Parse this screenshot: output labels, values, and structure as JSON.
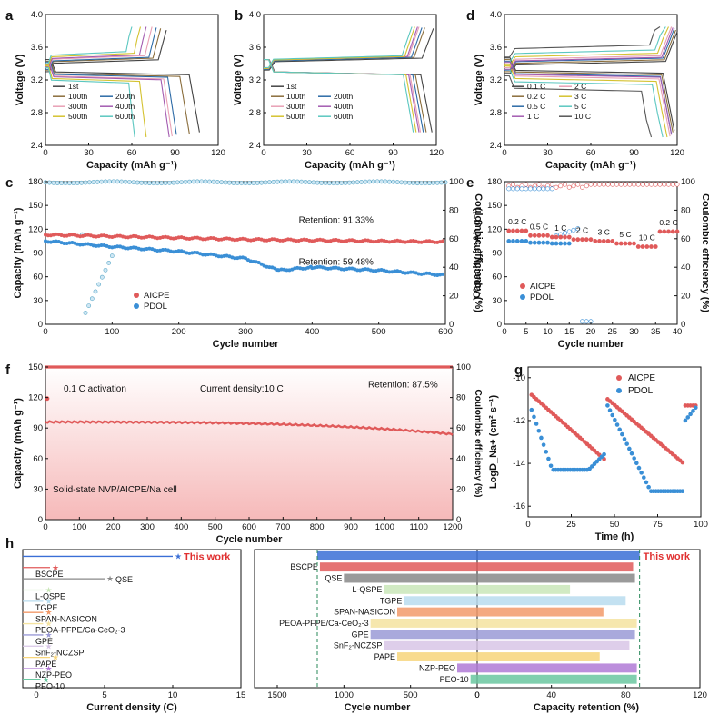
{
  "chart_data": [
    {
      "panel": "a",
      "type": "line",
      "xlabel": "Capacity (mAh g⁻¹)",
      "ylabel": "Voltage (V)",
      "xlim": [
        0,
        120
      ],
      "ylim": [
        2.4,
        4.0
      ],
      "xticks": [
        "0",
        "30",
        "60",
        "90",
        "120"
      ],
      "yticks": [
        "2.4",
        "2.8",
        "3.2",
        "3.6",
        "4.0"
      ],
      "legend": [
        "1st",
        "100th",
        "200th",
        "300th",
        "400th",
        "500th",
        "600th"
      ],
      "series": [
        {
          "name": "1st",
          "color": "#444444",
          "charge_end": 84,
          "discharge_end": 107,
          "vc": 3.4,
          "vd": 3.3
        },
        {
          "name": "100th",
          "color": "#8a6d3b",
          "charge_end": 80,
          "discharge_end": 100,
          "vc": 3.42,
          "vd": 3.28
        },
        {
          "name": "200th",
          "color": "#2c6aa6",
          "charge_end": 77,
          "discharge_end": 91,
          "vc": 3.43,
          "vd": 3.27
        },
        {
          "name": "300th",
          "color": "#e8a0b4",
          "charge_end": 74,
          "discharge_end": 88,
          "vc": 3.45,
          "vd": 3.25
        },
        {
          "name": "400th",
          "color": "#a35bb0",
          "charge_end": 70,
          "discharge_end": 86,
          "vc": 3.46,
          "vd": 3.24
        },
        {
          "name": "500th",
          "color": "#d4c230",
          "charge_end": 66,
          "discharge_end": 70,
          "vc": 3.48,
          "vd": 3.22
        },
        {
          "name": "600th",
          "color": "#5bc7c0",
          "charge_end": 60,
          "discharge_end": 62,
          "vc": 3.5,
          "vd": 3.2
        }
      ]
    },
    {
      "panel": "b",
      "type": "line",
      "xlabel": "Capacity (mAh g⁻¹)",
      "ylabel": "Voltage (V)",
      "xlim": [
        0,
        120
      ],
      "ylim": [
        2.4,
        4.0
      ],
      "xticks": [
        "0",
        "30",
        "60",
        "90",
        "120"
      ],
      "yticks": [
        "2.4",
        "2.8",
        "3.2",
        "3.6",
        "4.0"
      ],
      "legend": [
        "1st",
        "100th",
        "200th",
        "300th",
        "400th",
        "500th",
        "600th"
      ],
      "series": [
        {
          "name": "1st",
          "color": "#444444",
          "charge_end": 118,
          "discharge_end": 117,
          "vc": 3.42,
          "vd": 3.3
        },
        {
          "name": "100th",
          "color": "#8a6d3b",
          "charge_end": 112,
          "discharge_end": 113,
          "vc": 3.43,
          "vd": 3.3
        },
        {
          "name": "200th",
          "color": "#2c6aa6",
          "charge_end": 110,
          "discharge_end": 111,
          "vc": 3.43,
          "vd": 3.3
        },
        {
          "name": "300th",
          "color": "#e8a0b4",
          "charge_end": 108,
          "discharge_end": 109,
          "vc": 3.44,
          "vd": 3.3
        },
        {
          "name": "400th",
          "color": "#a35bb0",
          "charge_end": 107,
          "discharge_end": 108,
          "vc": 3.44,
          "vd": 3.3
        },
        {
          "name": "500th",
          "color": "#d4c230",
          "charge_end": 105,
          "discharge_end": 106,
          "vc": 3.44,
          "vd": 3.3
        },
        {
          "name": "600th",
          "color": "#5bc7c0",
          "charge_end": 103,
          "discharge_end": 104,
          "vc": 3.45,
          "vd": 3.3
        }
      ]
    },
    {
      "panel": "d",
      "type": "line",
      "xlabel": "Capacity (mAh g⁻¹)",
      "ylabel": "Voltage (V)",
      "xlim": [
        0,
        120
      ],
      "ylim": [
        2.4,
        4.0
      ],
      "xticks": [
        "0",
        "30",
        "60",
        "90",
        "120"
      ],
      "yticks": [
        "2.4",
        "2.8",
        "3.2",
        "3.6",
        "4.0"
      ],
      "legend": [
        "0.1 C",
        "2 C",
        "0.2 C",
        "3 C",
        "0.5 C",
        "5 C",
        "1 C",
        "10 C"
      ],
      "series": [
        {
          "name": "0.1 C",
          "color": "#444444",
          "charge_end": 120,
          "discharge_end": 118,
          "vc": 3.38,
          "vd": 3.32
        },
        {
          "name": "2 C",
          "color": "#e8a0b4",
          "charge_end": 116,
          "discharge_end": 115,
          "vc": 3.45,
          "vd": 3.25
        },
        {
          "name": "0.2 C",
          "color": "#8a6d3b",
          "charge_end": 119,
          "discharge_end": 117,
          "vc": 3.4,
          "vd": 3.3
        },
        {
          "name": "3 C",
          "color": "#d4c230",
          "charge_end": 114,
          "discharge_end": 113,
          "vc": 3.48,
          "vd": 3.22
        },
        {
          "name": "0.5 C",
          "color": "#2c6aa6",
          "charge_end": 118,
          "discharge_end": 116,
          "vc": 3.42,
          "vd": 3.28
        },
        {
          "name": "5 C",
          "color": "#5bc7c0",
          "charge_end": 112,
          "discharge_end": 110,
          "vc": 3.52,
          "vd": 3.18
        },
        {
          "name": "1 C",
          "color": "#a35bb0",
          "charge_end": 117,
          "discharge_end": 116,
          "vc": 3.43,
          "vd": 3.27
        },
        {
          "name": "10 C",
          "color": "#555555",
          "charge_end": 108,
          "discharge_end": 102,
          "vc": 3.58,
          "vd": 3.1
        }
      ]
    },
    {
      "panel": "c",
      "type": "scatter",
      "xlabel": "Cycle number",
      "ylabel": "Capacity (mAh g⁻¹)",
      "y2label": "Coulombic efficiency (%)",
      "xlim": [
        0,
        600
      ],
      "ylim": [
        0,
        180
      ],
      "y2lim": [
        0,
        100
      ],
      "xticks": [
        "0",
        "100",
        "200",
        "300",
        "400",
        "500",
        "600"
      ],
      "yticks": [
        "0",
        "30",
        "60",
        "90",
        "120",
        "150",
        "180"
      ],
      "y2ticks": [
        "0",
        "20",
        "40",
        "60",
        "80",
        "100"
      ],
      "legend": [
        "AICPE",
        "PDOL"
      ],
      "annotations": [
        "Retention: 91.33%",
        "Retention: 59.48%"
      ],
      "series": [
        {
          "name": "AICPE",
          "color": "#e05a5a",
          "capacity": [
            [
              0,
              113
            ],
            [
              100,
              111
            ],
            [
              200,
              109
            ],
            [
              300,
              107
            ],
            [
              400,
              106
            ],
            [
              500,
              105
            ],
            [
              600,
              104
            ]
          ],
          "ce": 100
        },
        {
          "name": "PDOL",
          "color": "#3a8fd6",
          "capacity": [
            [
              0,
              105
            ],
            [
              100,
              98
            ],
            [
              200,
              92
            ],
            [
              300,
              83
            ],
            [
              350,
              68
            ],
            [
              400,
              72
            ],
            [
              500,
              68
            ],
            [
              600,
              62
            ]
          ],
          "ce": 100
        }
      ]
    },
    {
      "panel": "e",
      "type": "scatter",
      "xlabel": "Cycle number",
      "ylabel": "Capacity (mAh g⁻¹)",
      "y2label": "Coulombic efficiency (%)",
      "xlim": [
        0,
        40
      ],
      "ylim": [
        0,
        180
      ],
      "y2lim": [
        0,
        100
      ],
      "xticks": [
        "0",
        "5",
        "10",
        "15",
        "20",
        "25",
        "30",
        "35",
        "40"
      ],
      "yticks": [
        "0",
        "30",
        "60",
        "90",
        "120",
        "150",
        "180"
      ],
      "y2ticks": [
        "0",
        "20",
        "40",
        "60",
        "80",
        "100"
      ],
      "legend": [
        "AICPE",
        "PDOL"
      ],
      "rate_labels": [
        "0.2 C",
        "0.5 C",
        "1 C",
        "2 C",
        "3 C",
        "5 C",
        "10 C",
        "0.2 C"
      ],
      "series": [
        {
          "name": "AICPE",
          "color": "#e05a5a",
          "steps": [
            118,
            112,
            110,
            107,
            105,
            102,
            98,
            117
          ]
        },
        {
          "name": "PDOL",
          "color": "#3a8fd6",
          "steps": [
            105,
            103,
            102,
            0,
            0,
            0,
            0,
            0
          ]
        }
      ]
    },
    {
      "panel": "f",
      "type": "scatter",
      "xlabel": "Cycle number",
      "ylabel": "Capacity (mAh g⁻¹)",
      "y2label": "Coulombic efficiency (%)",
      "xlim": [
        0,
        1200
      ],
      "ylim": [
        0,
        150
      ],
      "y2lim": [
        0,
        100
      ],
      "xticks": [
        "0",
        "100",
        "200",
        "300",
        "400",
        "500",
        "600",
        "700",
        "800",
        "900",
        "1000",
        "1100",
        "1200"
      ],
      "yticks": [
        "0",
        "30",
        "60",
        "90",
        "120",
        "150"
      ],
      "y2ticks": [
        "0",
        "20",
        "40",
        "60",
        "80",
        "100"
      ],
      "annotations": [
        "0.1 C activation",
        "Current density:10 C",
        "Retention: 87.5%",
        "Solid-state NVP/AICPE/Na cell"
      ],
      "series": [
        {
          "name": "AICPE",
          "color": "#e05a5a",
          "capacity_start": 96,
          "capacity_end": 84,
          "ce": 100
        }
      ]
    },
    {
      "panel": "g",
      "type": "scatter",
      "xlabel": "Time (h)",
      "ylabel": "LogD_Na+ (cm² s⁻¹)",
      "xlim": [
        0,
        100
      ],
      "ylim": [
        -16.5,
        -9.5
      ],
      "xticks": [
        "0",
        "25",
        "50",
        "75",
        "100"
      ],
      "yticks": [
        "-10",
        "-12",
        "-14",
        "-16"
      ],
      "legend": [
        "AICPE",
        "PDOL"
      ],
      "series": [
        {
          "name": "AICPE",
          "color": "#e05a5a"
        },
        {
          "name": "PDOL",
          "color": "#3a8fd6"
        }
      ]
    },
    {
      "panel": "h",
      "type": "bar",
      "left_xlabel": "Current density (C)",
      "mid_xlabel": "Cycle number",
      "right_xlabel": "Capacity retention (%)",
      "left_xticks": [
        "0",
        "5",
        "10",
        "15"
      ],
      "mid_xticks": [
        "1500",
        "1000",
        "500",
        "0"
      ],
      "right_xticks": [
        "0",
        "40",
        "80",
        "120"
      ],
      "highlight": "This work",
      "categories": [
        "This work",
        "BSCPE",
        "QSE",
        "L-QSPE",
        "TGPE",
        "SPAN-NASICON",
        "PEOA-PFPE/Ca-CeO₂-3",
        "GPE",
        "SnF₂-NCZSP",
        "PAPE",
        "NZP-PEO",
        "PEO-10"
      ],
      "current_density": [
        10,
        1,
        5,
        0.5,
        0.5,
        0.5,
        0.5,
        0.5,
        0.5,
        1,
        0.5,
        0.3
      ],
      "cycles": [
        1200,
        1180,
        1000,
        700,
        550,
        600,
        800,
        800,
        700,
        600,
        150,
        50
      ],
      "retention": [
        87.5,
        84,
        85,
        50,
        80,
        68,
        86,
        85,
        82,
        66,
        86,
        86
      ],
      "colors": [
        "#3a6fd6",
        "#e05a5a",
        "#888888",
        "#c9e6b8",
        "#b8dcee",
        "#f29a6a",
        "#f4e3a0",
        "#9a9ad6",
        "#d8c6e6",
        "#f7d57a",
        "#b07ad6",
        "#6ac7a0"
      ]
    }
  ],
  "labels": {
    "a": "a",
    "b": "b",
    "c": "c",
    "d": "d",
    "e": "e",
    "f": "f",
    "g": "g",
    "h": "h"
  }
}
